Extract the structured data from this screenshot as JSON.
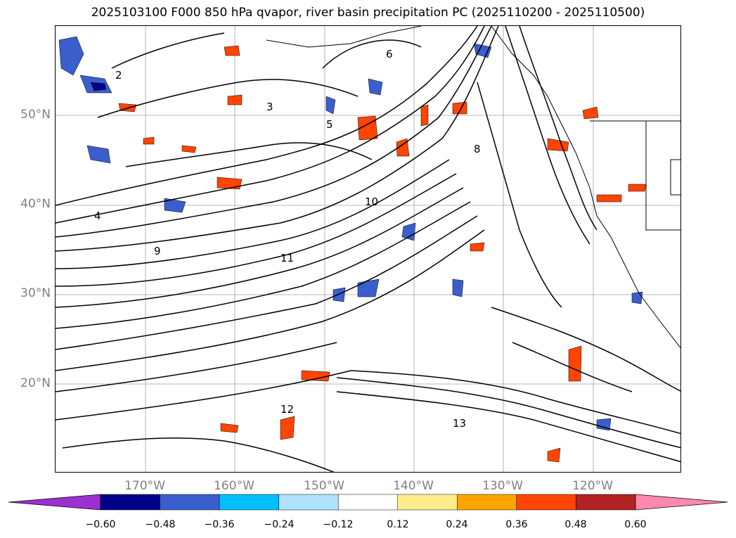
{
  "title": "2025103100 F000 850 hPa qvapor, river basin precipitation PC (2025110200 - 2025110500)",
  "latitude_labels": [
    "50°N",
    "40°N",
    "30°N",
    "20°N"
  ],
  "longitude_labels": [
    "170°W",
    "160°W",
    "150°W",
    "140°W",
    "130°W",
    "120°W"
  ],
  "colorbar": {
    "ticks": [
      "−0.60",
      "−0.48",
      "−0.36",
      "−0.24",
      "−0.12",
      "0.12",
      "0.24",
      "0.36",
      "0.48",
      "0.60"
    ],
    "colors": [
      "#9b30d0",
      "#00008b",
      "#3a5fcd",
      "#00bfff",
      "#b0e2ff",
      "#ffffff",
      "#ffec8b",
      "#ffa500",
      "#ff4500",
      "#b22222",
      "#ff88b0"
    ]
  },
  "contour_labels": [
    "2",
    "3",
    "4",
    "5",
    "6",
    "8",
    "9",
    "10",
    "11",
    "12",
    "13"
  ],
  "map_colors": {
    "contour": "#000000",
    "grid": "#a0a0a0",
    "coast": "#000000"
  }
}
